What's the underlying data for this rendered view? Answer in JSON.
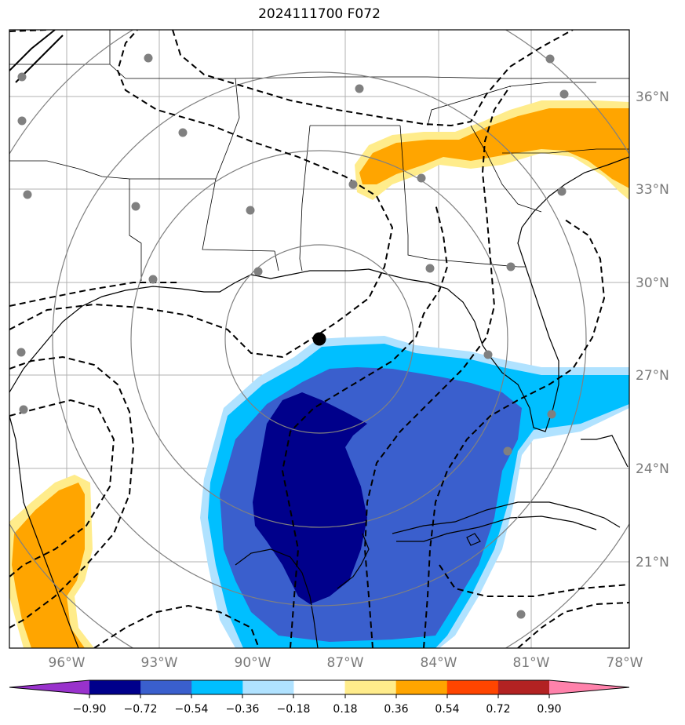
{
  "title": "2024111700 F072",
  "latitude_labels": [
    "36°N",
    "33°N",
    "30°N",
    "27°N",
    "24°N",
    "21°N"
  ],
  "longitude_labels": [
    "96°W",
    "93°W",
    "90°W",
    "87°W",
    "84°W",
    "81°W",
    "78°W"
  ],
  "colorbar": {
    "tick_labels": [
      "−0.90",
      "−0.72",
      "−0.54",
      "−0.36",
      "−0.18",
      "0.18",
      "0.36",
      "0.54",
      "0.72",
      "0.90"
    ],
    "colors": [
      "#9932cc",
      "#00008b",
      "#3a5fcd",
      "#00bfff",
      "#b0e2ff",
      "#ffffff",
      "#ffec8b",
      "#ffa500",
      "#ff4500",
      "#b22222",
      "#ff82ab"
    ]
  },
  "colors": {
    "dark_blue": "#00008b",
    "royal_blue": "#3a5fcd",
    "deep_sky_blue": "#00bfff",
    "light_sky_blue": "#b0e2ff",
    "light_yellow": "#ffec8b",
    "orange": "#ffa500",
    "station_gray": "#808080"
  }
}
